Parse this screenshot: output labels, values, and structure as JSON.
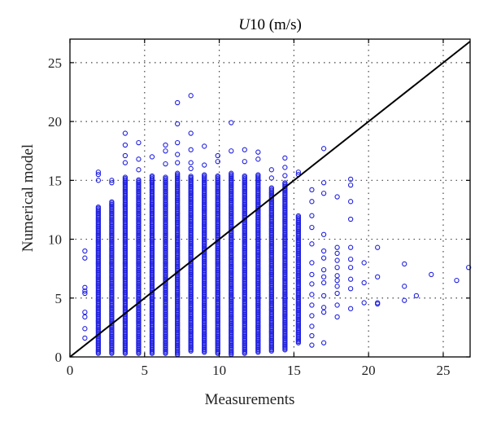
{
  "chart_data": {
    "type": "scatter",
    "title": "U10 (m/s)",
    "title_parts": {
      "italic": "U",
      "rest": "10 (m/s)"
    },
    "xlabel": "Measurements",
    "ylabel": "Numerical model",
    "xlim": [
      0,
      26.8
    ],
    "ylim": [
      0,
      27
    ],
    "x_ticks": [
      0,
      5,
      10,
      15,
      20,
      25
    ],
    "y_ticks": [
      0,
      5,
      10,
      15,
      20,
      25
    ],
    "grid": true,
    "reference_line": {
      "from": [
        0,
        0
      ],
      "to": [
        26.8,
        26.8
      ]
    },
    "marker": "circle-open",
    "color": "#1f1fe0",
    "series": [
      {
        "name": "",
        "columns": [
          {
            "x": 1.0,
            "y": [
              1.6,
              2.4,
              3.4,
              3.8,
              5.4,
              5.6,
              5.9,
              8.4,
              9.0
            ]
          },
          {
            "x": 1.9,
            "y_range": [
              0.3,
              12.8
            ],
            "extra_y": [
              15.0,
              15.5,
              15.7
            ]
          },
          {
            "x": 2.8,
            "y_range": [
              0.3,
              13.2
            ],
            "extra_y": [
              14.8,
              15.0
            ]
          },
          {
            "x": 3.7,
            "y_range": [
              0.3,
              15.3
            ],
            "extra_y": [
              16.5,
              17.1,
              18.0,
              19.0
            ]
          },
          {
            "x": 4.6,
            "y_range": [
              0.3,
              15.1
            ],
            "extra_y": [
              15.9,
              16.8,
              18.2
            ]
          },
          {
            "x": 5.5,
            "y_range": [
              0.3,
              15.4
            ],
            "extra_y": [
              17.0
            ]
          },
          {
            "x": 6.4,
            "y_range": [
              0.3,
              15.3
            ],
            "extra_y": [
              16.4,
              17.5,
              18.0
            ]
          },
          {
            "x": 7.2,
            "y_range": [
              0.2,
              15.6
            ],
            "extra_y": [
              16.5,
              17.2,
              18.2,
              19.8,
              21.6
            ]
          },
          {
            "x": 8.1,
            "y_range": [
              0.5,
              15.4
            ],
            "extra_y": [
              16.0,
              16.5,
              17.6,
              19.0,
              22.2
            ]
          },
          {
            "x": 9.0,
            "y_range": [
              0.4,
              15.5
            ],
            "extra_y": [
              16.3,
              17.9
            ]
          },
          {
            "x": 9.9,
            "y_range": [
              0.3,
              15.4
            ],
            "extra_y": [
              16.6,
              17.1
            ]
          },
          {
            "x": 10.8,
            "y_range": [
              0.2,
              15.6
            ],
            "extra_y": [
              17.5,
              19.9
            ]
          },
          {
            "x": 11.7,
            "y_range": [
              0.3,
              15.4
            ],
            "extra_y": [
              16.6,
              17.6
            ]
          },
          {
            "x": 12.6,
            "y_range": [
              0.4,
              15.5
            ],
            "extra_y": [
              16.8,
              17.4
            ]
          },
          {
            "x": 13.5,
            "y_range": [
              0.5,
              14.4
            ],
            "extra_y": [
              15.2,
              15.9
            ]
          },
          {
            "x": 14.4,
            "y_range": [
              0.6,
              14.8
            ],
            "extra_y": [
              15.4,
              16.1,
              16.9
            ]
          },
          {
            "x": 15.3,
            "y_range": [
              1.2,
              12.0
            ],
            "extra_y": [
              15.5,
              15.7
            ]
          },
          {
            "x": 16.2,
            "y": [
              1.0,
              1.8,
              2.6,
              3.5,
              4.4,
              5.3,
              6.2,
              7.0,
              8.0,
              9.6,
              11.0,
              12.0,
              13.2,
              14.2
            ]
          },
          {
            "x": 17.0,
            "y": [
              1.2,
              3.8,
              4.2,
              5.2,
              6.3,
              6.8,
              7.4,
              8.4,
              9.0,
              10.4,
              13.9,
              14.8,
              17.7
            ]
          },
          {
            "x": 17.9,
            "y": [
              3.4,
              4.4,
              5.4,
              6.0,
              6.5,
              6.9,
              7.6,
              8.2,
              8.8,
              9.3,
              13.6
            ]
          },
          {
            "x": 18.8,
            "y": [
              4.1,
              5.8,
              6.6,
              7.6,
              8.3,
              9.3,
              11.7,
              13.2,
              14.6,
              15.1
            ]
          },
          {
            "x": 19.7,
            "y": [
              4.6,
              6.3,
              8.0
            ]
          },
          {
            "x": 20.6,
            "y": [
              4.5,
              4.6,
              6.8,
              9.3
            ]
          },
          {
            "x": 22.4,
            "y": [
              4.8,
              6.0,
              7.9
            ]
          },
          {
            "x": 23.2,
            "y": [
              5.2
            ]
          },
          {
            "x": 24.2,
            "y": [
              7.0
            ]
          },
          {
            "x": 25.9,
            "y": [
              6.5
            ]
          },
          {
            "x": 26.7,
            "y": [
              7.6
            ]
          }
        ]
      }
    ]
  }
}
